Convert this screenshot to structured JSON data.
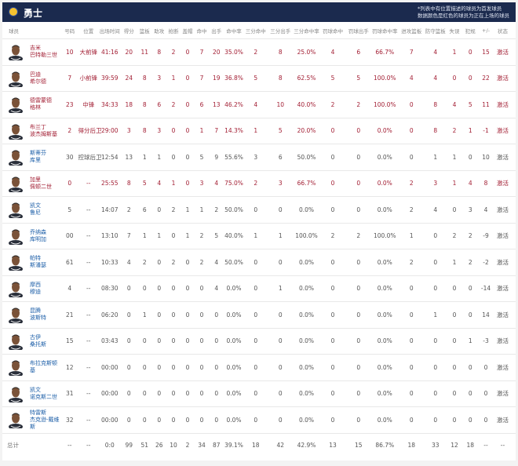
{
  "header": {
    "team": "勇士",
    "note_line1": "*列表中有位置描述的球员为首发球员",
    "note_line2": "数据颜色是红色的球员为正在上场的球员"
  },
  "colors": {
    "header_bg": "#1b2a4e",
    "on_court": "#a32035",
    "link": "#1d5fa8"
  },
  "columns": [
    "球员",
    "号码",
    "位置",
    "出场时间",
    "得分",
    "篮板",
    "助攻",
    "抢断",
    "盖帽",
    "命中",
    "出手",
    "命中率",
    "三分命中",
    "三分出手",
    "三分命中率",
    "罚球命中",
    "罚球出手",
    "罚球命中率",
    "进攻篮板",
    "防守篮板",
    "失误",
    "犯规",
    "+/-",
    "状态"
  ],
  "players": [
    {
      "name1": "吉米",
      "name2": "巴特勒三世",
      "on_court": true,
      "stats": [
        "10",
        "大前锋",
        "41:16",
        "20",
        "11",
        "8",
        "2",
        "0",
        "7",
        "20",
        "35.0%",
        "2",
        "8",
        "25.0%",
        "4",
        "6",
        "66.7%",
        "7",
        "4",
        "1",
        "0",
        "15",
        "激活"
      ]
    },
    {
      "name1": "巴迪",
      "name2": "希尔德",
      "on_court": true,
      "stats": [
        "7",
        "小前锋",
        "39:59",
        "24",
        "8",
        "3",
        "1",
        "0",
        "7",
        "19",
        "36.8%",
        "5",
        "8",
        "62.5%",
        "5",
        "5",
        "100.0%",
        "4",
        "4",
        "0",
        "0",
        "22",
        "激活"
      ]
    },
    {
      "name1": "德雷蒙德",
      "name2": "格林",
      "on_court": true,
      "stats": [
        "23",
        "中锋",
        "34:33",
        "18",
        "8",
        "6",
        "2",
        "0",
        "6",
        "13",
        "46.2%",
        "4",
        "10",
        "40.0%",
        "2",
        "2",
        "100.0%",
        "0",
        "8",
        "4",
        "5",
        "11",
        "激活"
      ]
    },
    {
      "name1": "布兰丁",
      "name2": "波杰姆斯基",
      "on_court": true,
      "stats": [
        "2",
        "得分后卫",
        "29:00",
        "3",
        "8",
        "3",
        "0",
        "0",
        "1",
        "7",
        "14.3%",
        "1",
        "5",
        "20.0%",
        "0",
        "0",
        "0.0%",
        "0",
        "8",
        "2",
        "1",
        "-1",
        "激活"
      ]
    },
    {
      "name1": "斯蒂芬",
      "name2": "库里",
      "on_court": false,
      "stats": [
        "30",
        "控球后卫",
        "12:54",
        "13",
        "1",
        "1",
        "0",
        "0",
        "5",
        "9",
        "55.6%",
        "3",
        "6",
        "50.0%",
        "0",
        "0",
        "0.0%",
        "0",
        "1",
        "1",
        "0",
        "10",
        "激活"
      ]
    },
    {
      "name1": "加里",
      "name2": "佩顿二世",
      "on_court": true,
      "stats": [
        "0",
        "--",
        "25:55",
        "8",
        "5",
        "4",
        "1",
        "0",
        "3",
        "4",
        "75.0%",
        "2",
        "3",
        "66.7%",
        "0",
        "0",
        "0.0%",
        "2",
        "3",
        "1",
        "4",
        "8",
        "激活"
      ]
    },
    {
      "name1": "凯文",
      "name2": "鲁尼",
      "on_court": false,
      "stats": [
        "5",
        "--",
        "14:07",
        "2",
        "6",
        "0",
        "2",
        "1",
        "1",
        "2",
        "50.0%",
        "0",
        "0",
        "0.0%",
        "0",
        "0",
        "0.0%",
        "2",
        "4",
        "0",
        "3",
        "4",
        "激活"
      ]
    },
    {
      "name1": "乔纳森",
      "name2": "库明加",
      "on_court": false,
      "stats": [
        "00",
        "--",
        "13:10",
        "7",
        "1",
        "1",
        "0",
        "1",
        "2",
        "5",
        "40.0%",
        "1",
        "1",
        "100.0%",
        "2",
        "2",
        "100.0%",
        "1",
        "0",
        "2",
        "2",
        "-9",
        "激活"
      ]
    },
    {
      "name1": "帕特",
      "name2": "斯潘瑟",
      "on_court": false,
      "stats": [
        "61",
        "--",
        "10:33",
        "4",
        "2",
        "0",
        "2",
        "0",
        "2",
        "4",
        "50.0%",
        "0",
        "0",
        "0.0%",
        "0",
        "0",
        "0.0%",
        "2",
        "0",
        "1",
        "2",
        "-2",
        "激活"
      ]
    },
    {
      "name1": "摩西",
      "name2": "穆迪",
      "on_court": false,
      "stats": [
        "4",
        "--",
        "08:30",
        "0",
        "0",
        "0",
        "0",
        "0",
        "0",
        "4",
        "0.0%",
        "0",
        "1",
        "0.0%",
        "0",
        "0",
        "0.0%",
        "0",
        "0",
        "0",
        "0",
        "-14",
        "激活"
      ]
    },
    {
      "name1": "昆腾",
      "name2": "波斯特",
      "on_court": false,
      "stats": [
        "21",
        "--",
        "06:20",
        "0",
        "1",
        "0",
        "0",
        "0",
        "0",
        "0",
        "0.0%",
        "0",
        "0",
        "0.0%",
        "0",
        "0",
        "0.0%",
        "0",
        "1",
        "0",
        "0",
        "14",
        "激活"
      ]
    },
    {
      "name1": "古伊",
      "name2": "桑托斯",
      "on_court": false,
      "stats": [
        "15",
        "--",
        "03:43",
        "0",
        "0",
        "0",
        "0",
        "0",
        "0",
        "0",
        "0.0%",
        "0",
        "0",
        "0.0%",
        "0",
        "0",
        "0.0%",
        "0",
        "0",
        "0",
        "1",
        "-3",
        "激活"
      ]
    },
    {
      "name1": "布拉克斯顿",
      "name2": "基",
      "on_court": false,
      "stats": [
        "12",
        "--",
        "00:00",
        "0",
        "0",
        "0",
        "0",
        "0",
        "0",
        "0",
        "0.0%",
        "0",
        "0",
        "0.0%",
        "0",
        "0",
        "0.0%",
        "0",
        "0",
        "0",
        "0",
        "0",
        "激活"
      ]
    },
    {
      "name1": "凯文",
      "name2": "诺克斯二世",
      "on_court": false,
      "stats": [
        "31",
        "--",
        "00:00",
        "0",
        "0",
        "0",
        "0",
        "0",
        "0",
        "0",
        "0.0%",
        "0",
        "0",
        "0.0%",
        "0",
        "0",
        "0.0%",
        "0",
        "0",
        "0",
        "0",
        "0",
        "激活"
      ]
    },
    {
      "name1": "特雷斯",
      "name2": "杰克逊-戴维斯",
      "on_court": false,
      "stats": [
        "32",
        "--",
        "00:00",
        "0",
        "0",
        "0",
        "0",
        "0",
        "0",
        "0",
        "0.0%",
        "0",
        "0",
        "0.0%",
        "0",
        "0",
        "0.0%",
        "0",
        "0",
        "0",
        "0",
        "0",
        "激活"
      ]
    }
  ],
  "totals": {
    "label": "总计",
    "stats": [
      "--",
      "--",
      "0:0",
      "99",
      "51",
      "26",
      "10",
      "2",
      "34",
      "87",
      "39.1%",
      "18",
      "42",
      "42.9%",
      "13",
      "15",
      "86.7%",
      "18",
      "33",
      "12",
      "18",
      "--",
      "--"
    ]
  }
}
